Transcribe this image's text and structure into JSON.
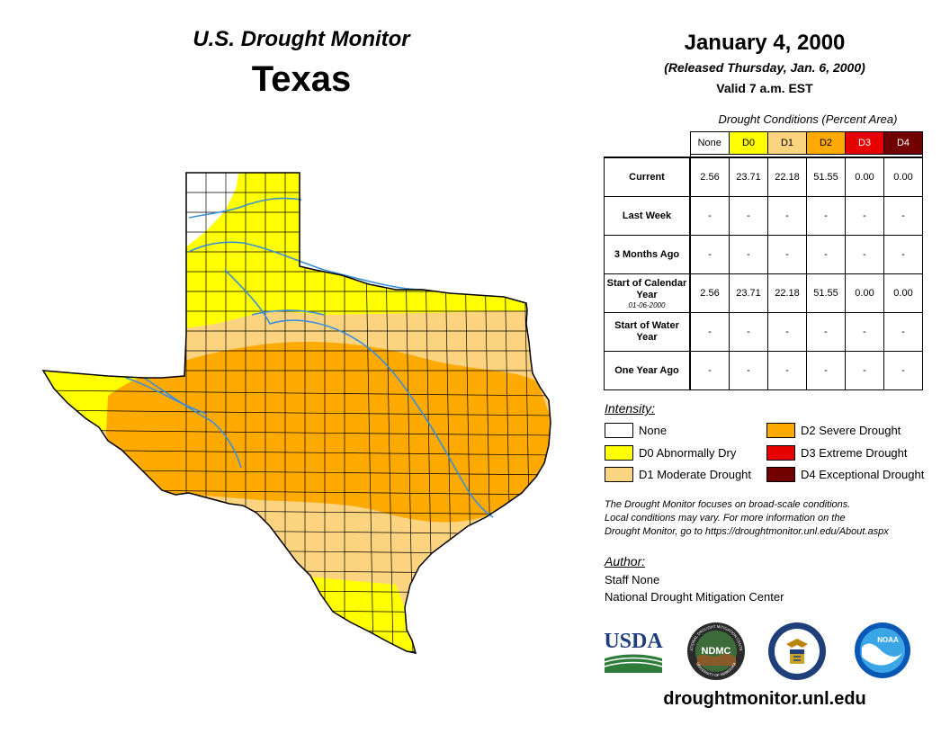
{
  "header": {
    "title": "U.S. Drought Monitor",
    "state": "Texas",
    "date": "January 4, 2000",
    "released": "(Released Thursday, Jan. 6, 2000)",
    "valid": "Valid 7 a.m. EST"
  },
  "colors": {
    "none": "#ffffff",
    "d0": "#ffff00",
    "d1": "#fcd37f",
    "d2": "#ffaa00",
    "d3": "#e60000",
    "d4": "#730000",
    "river": "#3a8fd8"
  },
  "table": {
    "caption": "Drought Conditions (Percent Area)",
    "columns": [
      "None",
      "D0",
      "D1",
      "D2",
      "D3",
      "D4"
    ],
    "rows": [
      {
        "label": "Current",
        "sub": "",
        "values": [
          "2.56",
          "23.71",
          "22.18",
          "51.55",
          "0.00",
          "0.00"
        ]
      },
      {
        "label": "Last Week",
        "sub": "",
        "values": [
          "-",
          "-",
          "-",
          "-",
          "-",
          "-"
        ]
      },
      {
        "label": "3 Months Ago",
        "sub": "",
        "values": [
          "-",
          "-",
          "-",
          "-",
          "-",
          "-"
        ]
      },
      {
        "label": "Start of Calendar Year",
        "sub": "01-06-2000",
        "values": [
          "2.56",
          "23.71",
          "22.18",
          "51.55",
          "0.00",
          "0.00"
        ]
      },
      {
        "label": "Start of Water Year",
        "sub": "",
        "values": [
          "-",
          "-",
          "-",
          "-",
          "-",
          "-"
        ]
      },
      {
        "label": "One Year Ago",
        "sub": "",
        "values": [
          "-",
          "-",
          "-",
          "-",
          "-",
          "-"
        ]
      }
    ]
  },
  "legend": {
    "title": "Intensity:",
    "items": [
      {
        "key": "none",
        "label": "None"
      },
      {
        "key": "d0",
        "label": "D0 Abnormally Dry"
      },
      {
        "key": "d1",
        "label": "D1 Moderate Drought"
      },
      {
        "key": "d2",
        "label": "D2 Severe Drought"
      },
      {
        "key": "d3",
        "label": "D3 Extreme Drought"
      },
      {
        "key": "d4",
        "label": "D4 Exceptional Drought"
      }
    ]
  },
  "note": [
    "The Drought Monitor focuses on broad-scale conditions.",
    "Local conditions may vary. For more information on the",
    "Drought Monitor, go to https://droughtmonitor.unl.edu/About.aspx"
  ],
  "author": {
    "title": "Author:",
    "name": "Staff None",
    "org": "National Drought Mitigation Center"
  },
  "logos": {
    "usda": "USDA",
    "ndmc": "NDMC",
    "noaa": "NOAA",
    "ndmc_ring_text": "NATIONAL DROUGHT MITIGATION CENTER",
    "ndmc_ring_bottom": "UNIVERSITY OF NEBRASKA"
  },
  "footer": {
    "url": "droughtmonitor.unl.edu"
  }
}
